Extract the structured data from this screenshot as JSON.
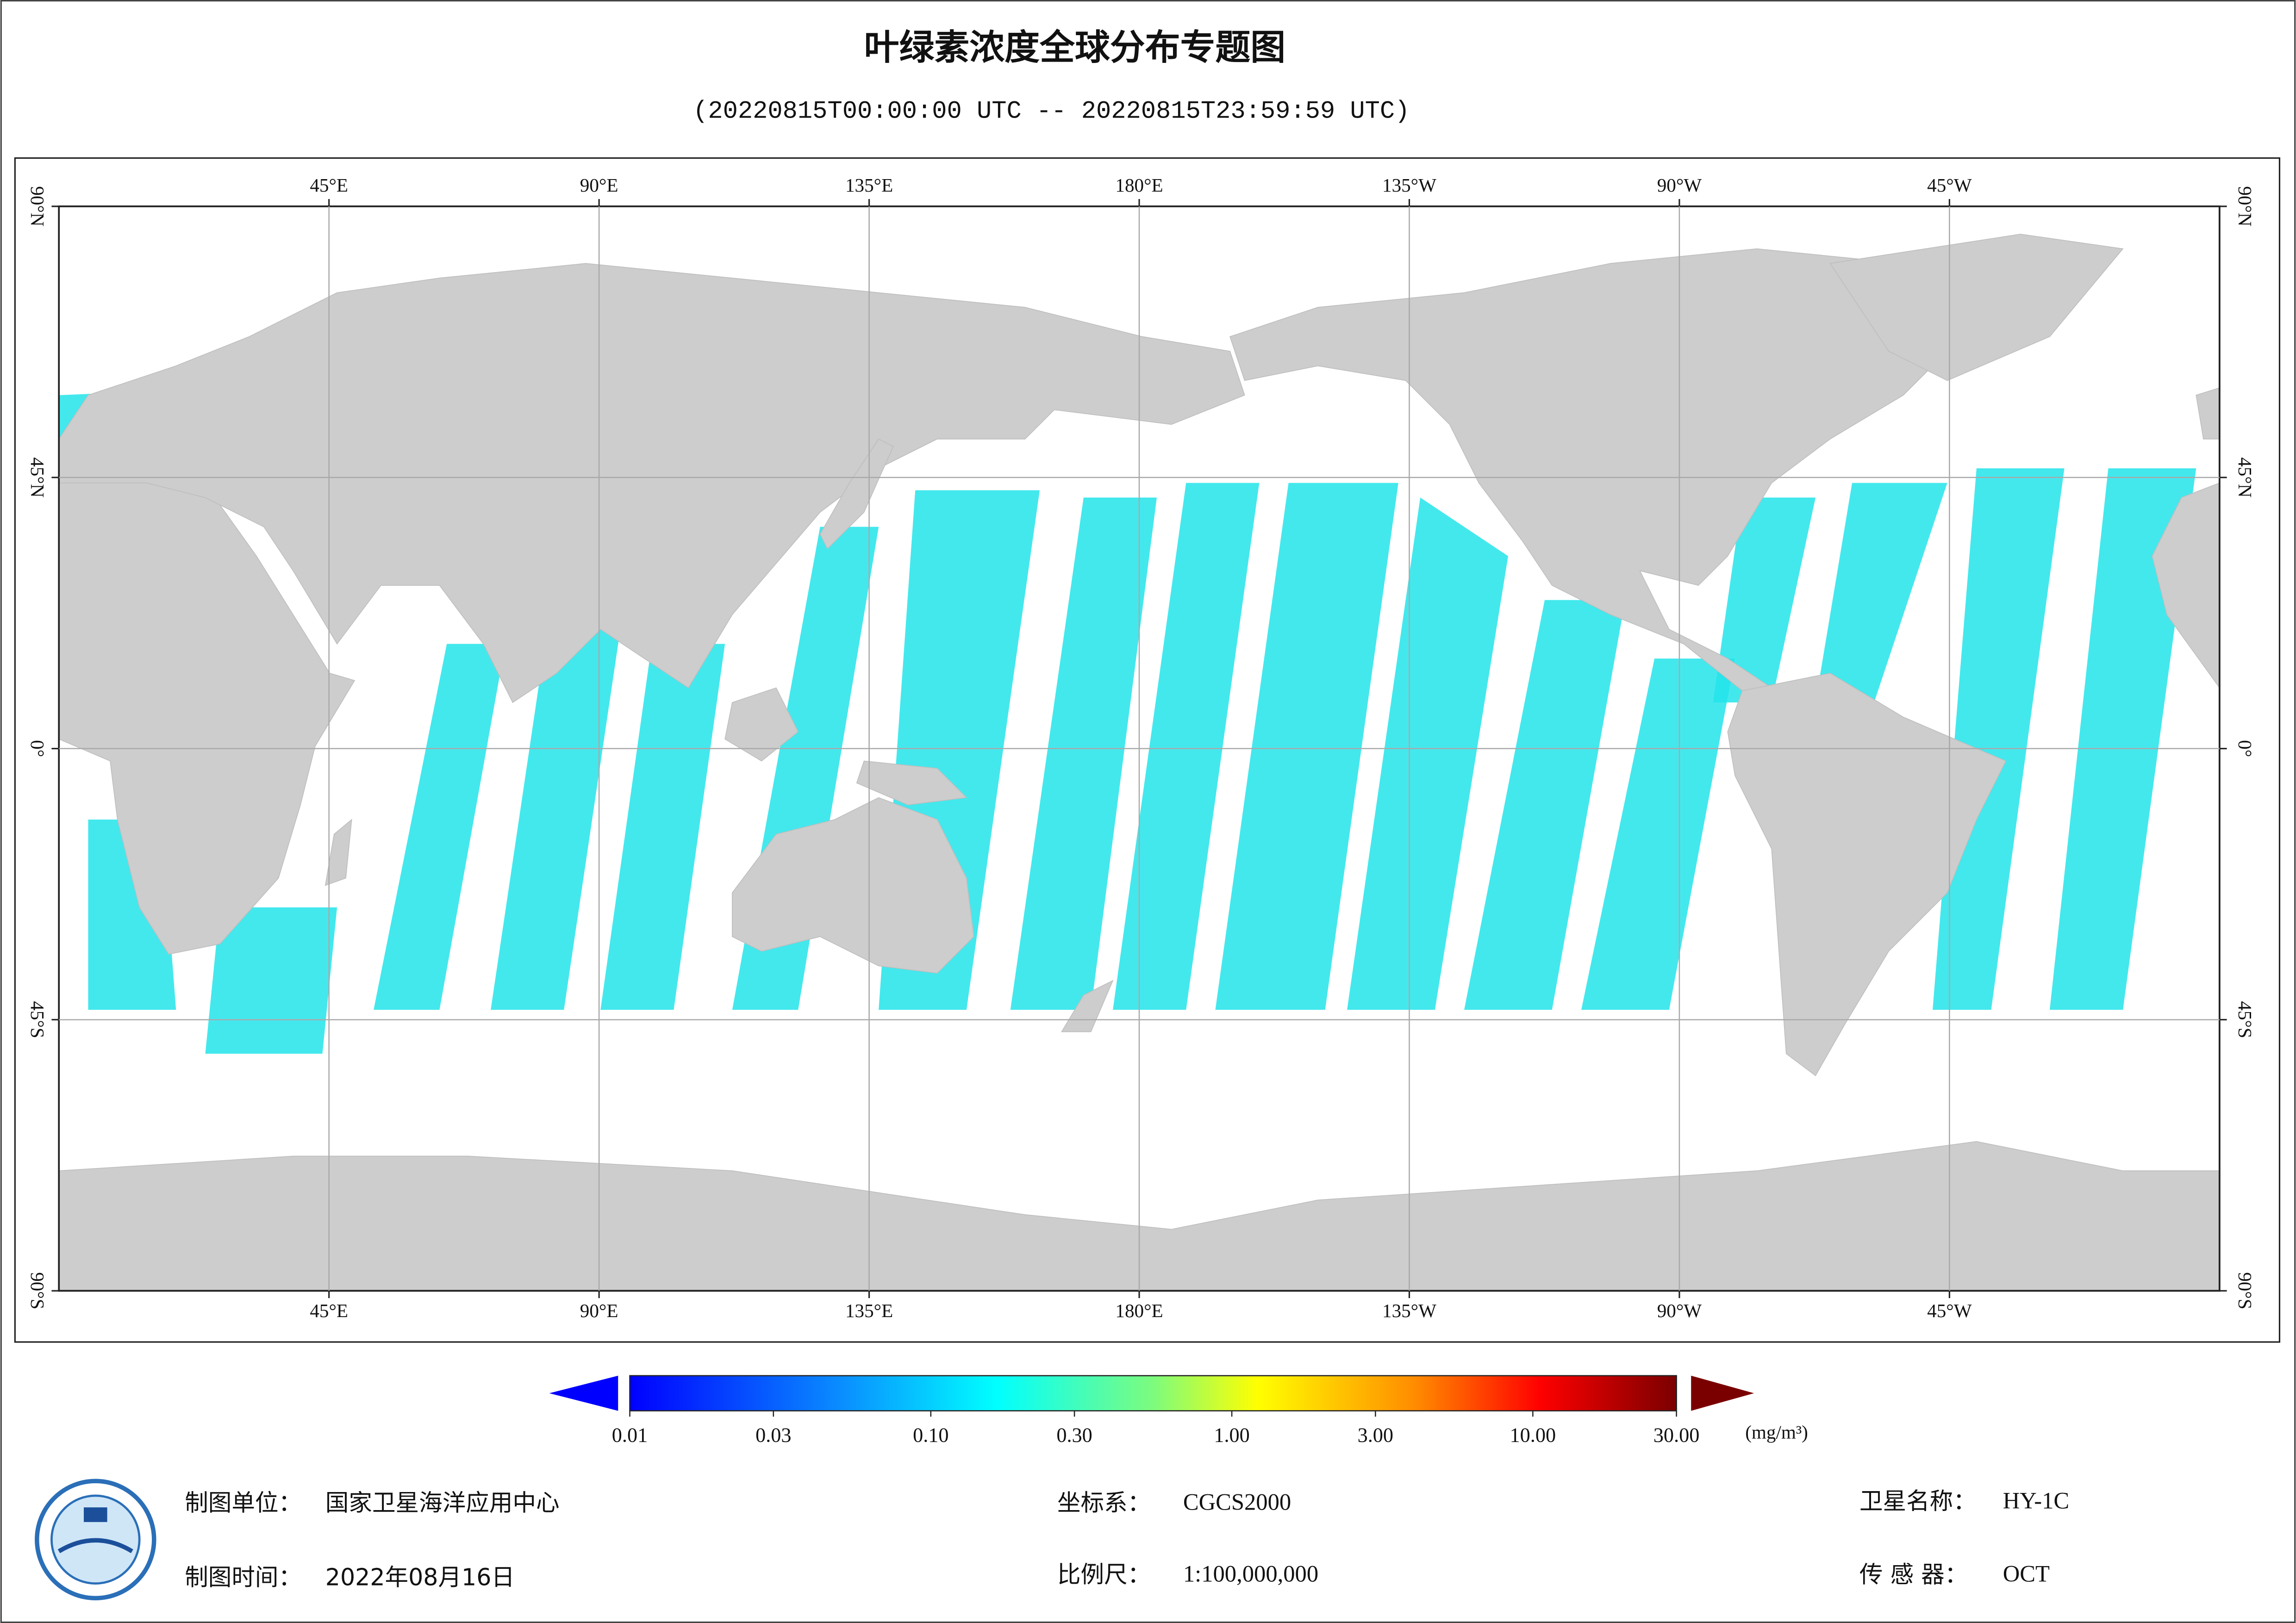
{
  "title": "叶绿素浓度全球分布专题图",
  "subtitle": "(20220815T00:00:00 UTC -- 20220815T23:59:59 UTC)",
  "map": {
    "lonlim": [
      0,
      360
    ],
    "latlim": [
      -90,
      90
    ],
    "lon_ticks": [
      {
        "value": 45,
        "label": "45°E"
      },
      {
        "value": 90,
        "label": "90°E"
      },
      {
        "value": 135,
        "label": "135°E"
      },
      {
        "value": 180,
        "label": "180°E"
      },
      {
        "value": -135,
        "label": "135°W"
      },
      {
        "value": -90,
        "label": "90°W"
      },
      {
        "value": -45,
        "label": "45°W"
      }
    ],
    "lat_ticks": [
      {
        "value": 90,
        "label": "90°N"
      },
      {
        "value": 45,
        "label": "45°N"
      },
      {
        "value": 0,
        "label": "0°"
      },
      {
        "value": -45,
        "label": "45°S"
      },
      {
        "value": -90,
        "label": "90°S"
      }
    ]
  },
  "colorbar": {
    "log": true,
    "range": [
      0.01,
      30
    ],
    "ticks": [
      {
        "value": 0.01,
        "label": "0.01"
      },
      {
        "value": 0.03,
        "label": "0.03"
      },
      {
        "value": 0.1,
        "label": "0.10"
      },
      {
        "value": 0.3,
        "label": "0.30"
      },
      {
        "value": 1,
        "label": "1.00"
      },
      {
        "value": 3,
        "label": "3.00"
      },
      {
        "value": 10,
        "label": "10.00"
      },
      {
        "value": 30,
        "label": "30.00"
      }
    ],
    "unit": "(mg/m³)"
  },
  "footer": {
    "unit": {
      "label": "制图单位：",
      "value": "国家卫星海洋应用中心"
    },
    "time": {
      "label": "制图时间：",
      "value": "2022年08月16日"
    },
    "crs": {
      "label": "坐标系：",
      "value": "CGCS2000"
    },
    "scale": {
      "label": "比例尺：",
      "value": "1:100,000,000"
    },
    "satellite": {
      "label": "卫星名称：",
      "value": "HY-1C"
    },
    "sensor": {
      "label": "传 感 器：",
      "value": "OCT"
    }
  }
}
